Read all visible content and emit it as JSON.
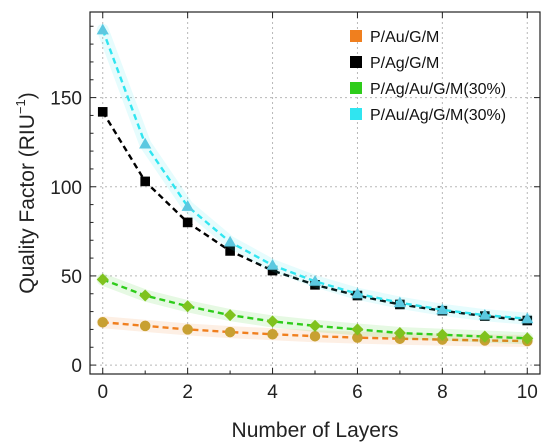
{
  "chart_data": {
    "type": "scatter",
    "xlabel": "Number of Layers",
    "ylabel": "Quality Factor (RIU",
    "ylabel_sup": "−1",
    "ylabel_close": ")",
    "xlim": [
      -0.3,
      10.3
    ],
    "ylim": [
      -5,
      198
    ],
    "xticks": [
      0,
      2,
      4,
      6,
      8,
      10
    ],
    "yticks": [
      0,
      50,
      100,
      150
    ],
    "grid": true,
    "legend_position": "top-right",
    "x": [
      0,
      1,
      2,
      3,
      4,
      5,
      6,
      7,
      8,
      9,
      10
    ],
    "series": [
      {
        "name": "P/Au/G/M",
        "color": "#F07F1E",
        "marker": "circle",
        "values": [
          24,
          22,
          20,
          18.5,
          17.3,
          16.2,
          15.4,
          14.8,
          14.3,
          13.8,
          13.5
        ]
      },
      {
        "name": "P/Ag/G/M",
        "color": "#000000",
        "marker": "square",
        "values": [
          142,
          103,
          80,
          64,
          53,
          45,
          39,
          34,
          30.5,
          27.5,
          25
        ]
      },
      {
        "name": "P/Ag/Au/G/M(30%)",
        "color": "#2ECC1A",
        "marker": "diamond",
        "values": [
          48,
          39,
          33,
          28,
          24.5,
          22,
          20,
          18,
          17,
          16,
          15
        ]
      },
      {
        "name": "P/Au/Ag/G/M(30%)",
        "color": "#30E5F0",
        "marker": "triangle",
        "values": [
          188,
          124,
          89,
          69,
          56,
          47,
          40,
          35,
          31,
          28,
          26
        ]
      }
    ]
  }
}
